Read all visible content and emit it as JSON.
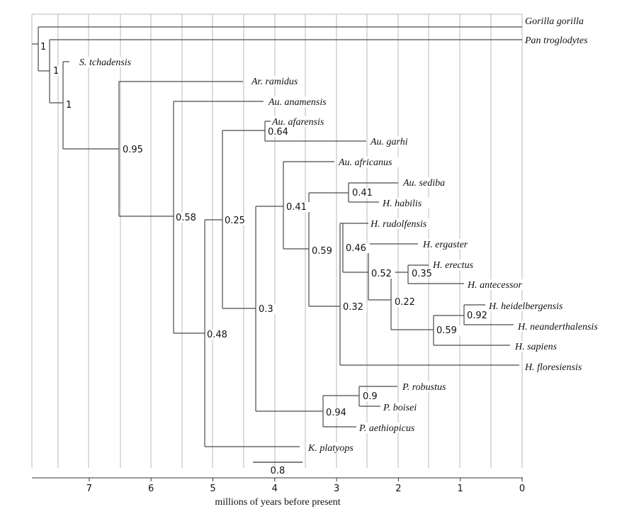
{
  "axis": {
    "label": "millions of years before present",
    "ticks": [
      7,
      6,
      5,
      4,
      3,
      2,
      1,
      0
    ],
    "grid_lines_visible": true
  },
  "scale_bar": {
    "label": "0.8"
  },
  "taxa": [
    "Gorilla gorilla",
    "Pan troglodytes",
    "S. tchadensis",
    "Ar. ramidus",
    "Au. anamensis",
    "Au. afarensis",
    "Au. garhi",
    "Au. africanus",
    "Au. sediba",
    "H. habilis",
    "H. rudolfensis",
    "H. ergaster",
    "H. erectus",
    "H. antecessor",
    "H. heidelbergensis",
    "H. neanderthalensis",
    "H. sapiens",
    "H. floresiensis",
    "P. robustus",
    "P. boisei",
    "P. aethiopicus",
    "K. platyops"
  ],
  "support_values": [
    "1",
    "1",
    "1",
    "0.95",
    "0.64",
    "0.58",
    "0.25",
    "0.41",
    "0.41",
    "0.59",
    "0.46",
    "0.52",
    "0.35",
    "0.22",
    "0.92",
    "0.59",
    "0.32",
    "0.3",
    "0.48",
    "0.9",
    "0.94"
  ],
  "colors": {
    "branch": "#4a4a4a",
    "grid": "#b9b9b9",
    "text": "#111111"
  }
}
